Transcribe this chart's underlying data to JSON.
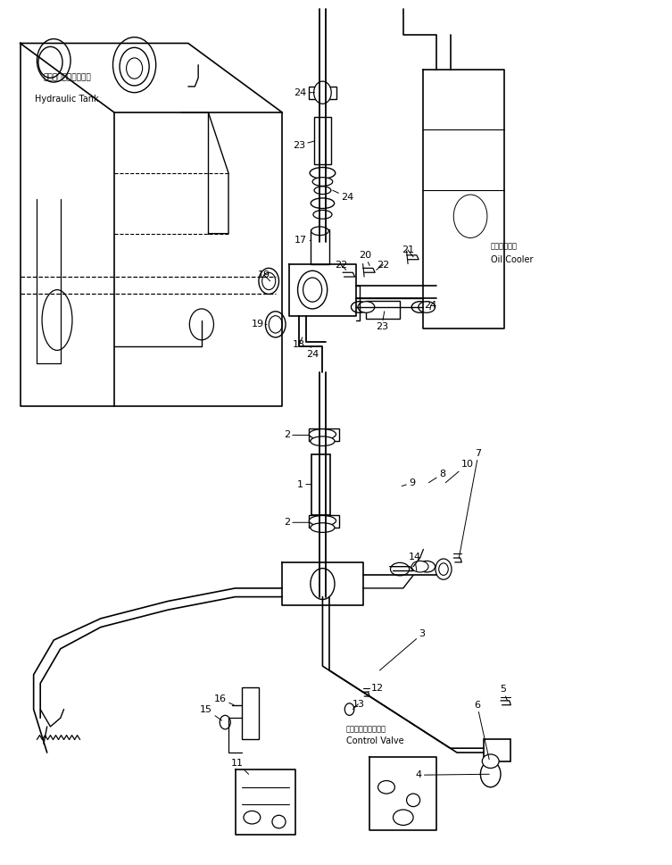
{
  "bg_color": "#ffffff",
  "line_color": "#000000",
  "line_width": 1.0,
  "fig_width": 7.53,
  "fig_height": 9.69,
  "dpi": 100,
  "labels": {
    "hydraulic_tank_jp": "ハイドロリックタンク",
    "hydraulic_tank_en": "Hydraulic Tank",
    "oil_cooler_jp": "オイルクーラ",
    "oil_cooler_en": "Oil Cooler",
    "control_valve_jp": "コントロールバルブ",
    "control_valve_en": "Control Valve"
  }
}
